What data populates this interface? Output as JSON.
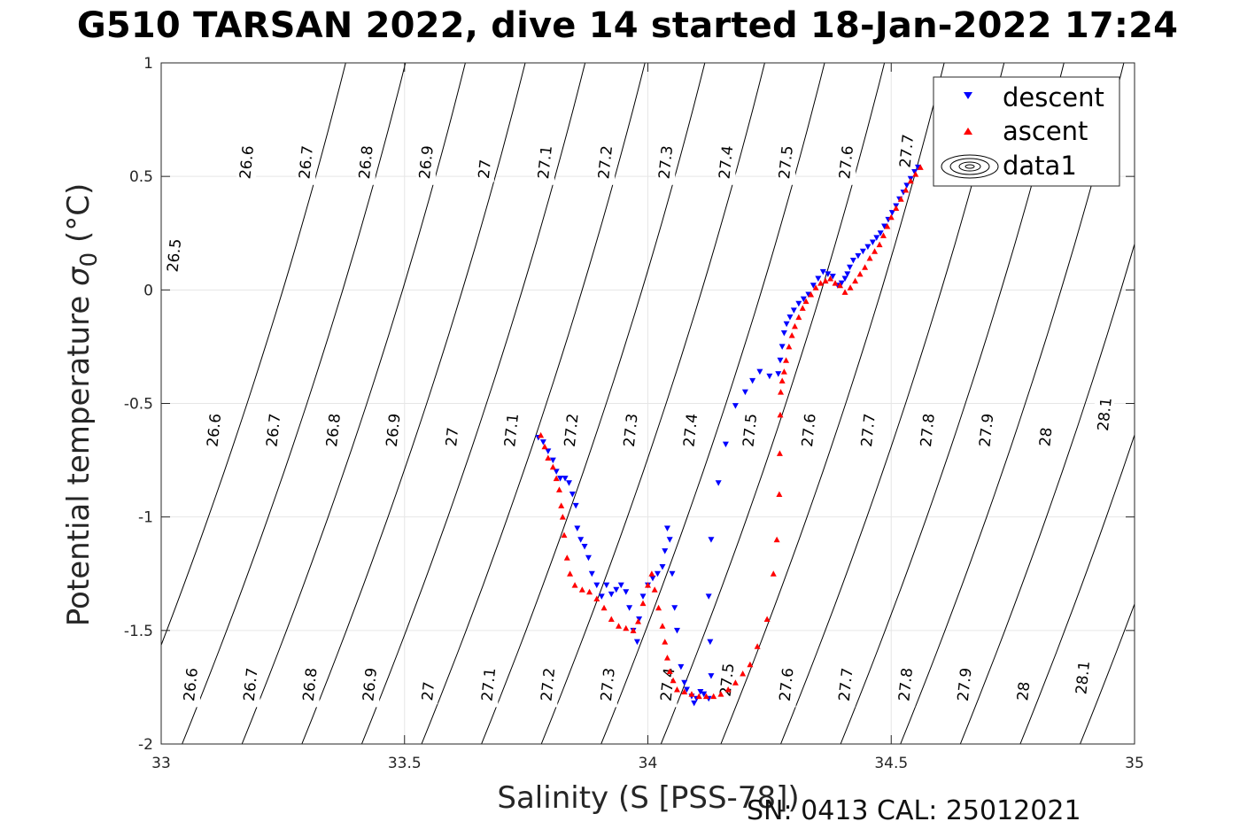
{
  "title": "G510 TARSAN 2022, dive 14 started 18-Jan-2022 17:24",
  "footer": "SN: 0413  CAL: 25012021",
  "colors": {
    "descent": "#0000ff",
    "ascent": "#ff0000",
    "grid": "#e6e6e6",
    "contour": "#000000",
    "axis": "#262626"
  },
  "chart_data": {
    "type": "scatter",
    "title": "G510 TARSAN 2022, dive 14 started 18-Jan-2022 17:24",
    "xlabel": "Salinity (S [PSS-78])",
    "ylabel": "Potential temperature σ 0 (°C)",
    "ylabel_main": "Potential temperature ",
    "ylabel_sigma": "σ",
    "ylabel_sub": "0",
    "ylabel_unit": " (°C)",
    "xlim": [
      33,
      35
    ],
    "ylim": [
      -2,
      1
    ],
    "xticks": [
      33,
      33.5,
      34,
      34.5,
      35
    ],
    "xtick_labels": [
      "33",
      "33.5",
      "34",
      "34.5",
      "35"
    ],
    "yticks": [
      -2,
      -1.5,
      -1,
      -0.5,
      0,
      0.5,
      1
    ],
    "ytick_labels": [
      "-2",
      "-1.5",
      "-1",
      "-0.5",
      "0",
      "0.5",
      "1"
    ],
    "grid": true,
    "legend": {
      "placement": "top-right",
      "entries": [
        "descent",
        "ascent",
        "data1"
      ]
    },
    "contours": {
      "name": "data1",
      "levels": [
        26.5,
        26.6,
        26.7,
        26.8,
        26.9,
        27,
        27.1,
        27.2,
        27.3,
        27.4,
        27.5,
        27.6,
        27.7,
        27.8,
        27.9,
        28,
        28.1
      ],
      "labels_top": [
        {
          "level": "26.5",
          "s": 33.026,
          "t": 0.15
        },
        {
          "level": "26.6",
          "s": 33.175,
          "t": 0.56
        },
        {
          "level": "26.7",
          "s": 33.297,
          "t": 0.56
        },
        {
          "level": "26.8",
          "s": 33.42,
          "t": 0.56
        },
        {
          "level": "26.9",
          "s": 33.544,
          "t": 0.56
        },
        {
          "level": "27",
          "s": 33.664,
          "t": 0.53
        },
        {
          "level": "27.1",
          "s": 33.788,
          "t": 0.56
        },
        {
          "level": "27.2",
          "s": 33.912,
          "t": 0.56
        },
        {
          "level": "27.3",
          "s": 34.036,
          "t": 0.56
        },
        {
          "level": "27.4",
          "s": 34.16,
          "t": 0.56
        },
        {
          "level": "27.5",
          "s": 34.283,
          "t": 0.56
        },
        {
          "level": "27.6",
          "s": 34.407,
          "t": 0.56
        },
        {
          "level": "27.7",
          "s": 34.531,
          "t": 0.61
        }
      ],
      "labels_mid": [
        {
          "level": "26.6",
          "s": 33.108,
          "t": -0.62
        },
        {
          "level": "26.7",
          "s": 33.23,
          "t": -0.62
        },
        {
          "level": "26.8",
          "s": 33.353,
          "t": -0.62
        },
        {
          "level": "26.9",
          "s": 33.476,
          "t": -0.62
        },
        {
          "level": "27",
          "s": 33.597,
          "t": -0.65
        },
        {
          "level": "27.1",
          "s": 33.719,
          "t": -0.62
        },
        {
          "level": "27.2",
          "s": 33.842,
          "t": -0.62
        },
        {
          "level": "27.3",
          "s": 33.964,
          "t": -0.62
        },
        {
          "level": "27.4",
          "s": 34.087,
          "t": -0.62
        },
        {
          "level": "27.5",
          "s": 34.209,
          "t": -0.62
        },
        {
          "level": "27.6",
          "s": 34.33,
          "t": -0.62
        },
        {
          "level": "27.7",
          "s": 34.452,
          "t": -0.62
        },
        {
          "level": "27.8",
          "s": 34.574,
          "t": -0.62
        },
        {
          "level": "27.9",
          "s": 34.695,
          "t": -0.62
        },
        {
          "level": "28",
          "s": 34.817,
          "t": -0.65
        },
        {
          "level": "28.1",
          "s": 34.938,
          "t": -0.55
        }
      ],
      "labels_bot": [
        {
          "level": "26.6",
          "s": 33.06,
          "t": -1.74
        },
        {
          "level": "26.7",
          "s": 33.183,
          "t": -1.74
        },
        {
          "level": "26.8",
          "s": 33.305,
          "t": -1.74
        },
        {
          "level": "26.9",
          "s": 33.428,
          "t": -1.74
        },
        {
          "level": "27",
          "s": 33.548,
          "t": -1.77
        },
        {
          "level": "27.1",
          "s": 33.672,
          "t": -1.74
        },
        {
          "level": "27.2",
          "s": 33.794,
          "t": -1.74
        },
        {
          "level": "27.3",
          "s": 33.917,
          "t": -1.74
        },
        {
          "level": "27.4",
          "s": 34.04,
          "t": -1.74
        },
        {
          "level": "27.5",
          "s": 34.162,
          "t": -1.72
        },
        {
          "level": "27.6",
          "s": 34.284,
          "t": -1.74
        },
        {
          "level": "27.7",
          "s": 34.406,
          "t": -1.74
        },
        {
          "level": "27.8",
          "s": 34.529,
          "t": -1.74
        },
        {
          "level": "27.9",
          "s": 34.65,
          "t": -1.74
        },
        {
          "level": "28",
          "s": 34.771,
          "t": -1.77
        },
        {
          "level": "28.1",
          "s": 34.893,
          "t": -1.71
        }
      ]
    },
    "series": [
      {
        "name": "descent",
        "marker": "triangle-down",
        "color": "#0000ff",
        "points": [
          [
            34.555,
            0.54
          ],
          [
            34.548,
            0.52
          ],
          [
            34.54,
            0.49
          ],
          [
            34.532,
            0.46
          ],
          [
            34.525,
            0.43
          ],
          [
            34.517,
            0.4
          ],
          [
            34.51,
            0.37
          ],
          [
            34.502,
            0.34
          ],
          [
            34.494,
            0.31
          ],
          [
            34.486,
            0.28
          ],
          [
            34.478,
            0.25
          ],
          [
            34.47,
            0.23
          ],
          [
            34.462,
            0.21
          ],
          [
            34.452,
            0.19
          ],
          [
            34.442,
            0.17
          ],
          [
            34.432,
            0.15
          ],
          [
            34.422,
            0.13
          ],
          [
            34.415,
            0.1
          ],
          [
            34.41,
            0.07
          ],
          [
            34.405,
            0.05
          ],
          [
            34.398,
            0.03
          ],
          [
            34.39,
            0.02
          ],
          [
            34.38,
            0.06
          ],
          [
            34.37,
            0.07
          ],
          [
            34.36,
            0.08
          ],
          [
            34.35,
            0.05
          ],
          [
            34.34,
            0.02
          ],
          [
            34.33,
            -0.02
          ],
          [
            34.32,
            -0.04
          ],
          [
            34.31,
            -0.06
          ],
          [
            34.3,
            -0.09
          ],
          [
            34.292,
            -0.12
          ],
          [
            34.285,
            -0.15
          ],
          [
            34.28,
            -0.19
          ],
          [
            34.276,
            -0.25
          ],
          [
            34.272,
            -0.31
          ],
          [
            34.268,
            -0.37
          ],
          [
            34.25,
            -0.38
          ],
          [
            34.23,
            -0.36
          ],
          [
            34.215,
            -0.4
          ],
          [
            34.2,
            -0.45
          ],
          [
            34.18,
            -0.51
          ],
          [
            34.16,
            -0.68
          ],
          [
            34.145,
            -0.85
          ],
          [
            34.13,
            -1.1
          ],
          [
            34.125,
            -1.35
          ],
          [
            34.128,
            -1.55
          ],
          [
            34.13,
            -1.7
          ],
          [
            34.125,
            -1.8
          ],
          [
            34.115,
            -1.78
          ],
          [
            34.108,
            -1.77
          ],
          [
            34.1,
            -1.8
          ],
          [
            34.095,
            -1.82
          ],
          [
            34.09,
            -1.79
          ],
          [
            34.08,
            -1.76
          ],
          [
            34.075,
            -1.73
          ],
          [
            34.068,
            -1.66
          ],
          [
            34.06,
            -1.5
          ],
          [
            34.055,
            -1.4
          ],
          [
            34.05,
            -1.25
          ],
          [
            34.045,
            -1.1
          ],
          [
            34.04,
            -1.05
          ],
          [
            34.035,
            -1.15
          ],
          [
            34.03,
            -1.22
          ],
          [
            34.02,
            -1.25
          ],
          [
            34.01,
            -1.27
          ],
          [
            34.0,
            -1.3
          ],
          [
            33.99,
            -1.35
          ],
          [
            33.982,
            -1.45
          ],
          [
            33.978,
            -1.55
          ],
          [
            33.97,
            -1.5
          ],
          [
            33.962,
            -1.4
          ],
          [
            33.955,
            -1.33
          ],
          [
            33.945,
            -1.3
          ],
          [
            33.935,
            -1.32
          ],
          [
            33.925,
            -1.34
          ],
          [
            33.915,
            -1.3
          ],
          [
            33.905,
            -1.35
          ],
          [
            33.895,
            -1.3
          ],
          [
            33.885,
            -1.25
          ],
          [
            33.878,
            -1.18
          ],
          [
            33.87,
            -1.13
          ],
          [
            33.862,
            -1.1
          ],
          [
            33.855,
            -1.05
          ],
          [
            33.852,
            -0.95
          ],
          [
            33.845,
            -0.9
          ],
          [
            33.838,
            -0.85
          ],
          [
            33.83,
            -0.83
          ],
          [
            33.82,
            -0.83
          ],
          [
            33.812,
            -0.8
          ],
          [
            33.805,
            -0.75
          ],
          [
            33.795,
            -0.71
          ],
          [
            33.785,
            -0.67
          ],
          [
            33.775,
            -0.65
          ]
        ]
      },
      {
        "name": "ascent",
        "marker": "triangle-up",
        "color": "#ff0000",
        "points": [
          [
            34.56,
            0.54
          ],
          [
            34.55,
            0.51
          ],
          [
            34.54,
            0.48
          ],
          [
            34.53,
            0.44
          ],
          [
            34.52,
            0.4
          ],
          [
            34.51,
            0.36
          ],
          [
            34.5,
            0.32
          ],
          [
            34.492,
            0.28
          ],
          [
            34.484,
            0.24
          ],
          [
            34.476,
            0.2
          ],
          [
            34.466,
            0.17
          ],
          [
            34.456,
            0.14
          ],
          [
            34.446,
            0.1
          ],
          [
            34.436,
            0.07
          ],
          [
            34.426,
            0.04
          ],
          [
            34.416,
            0.01
          ],
          [
            34.405,
            -0.01
          ],
          [
            34.395,
            0.02
          ],
          [
            34.385,
            0.03
          ],
          [
            34.375,
            0.05
          ],
          [
            34.365,
            0.04
          ],
          [
            34.355,
            0.03
          ],
          [
            34.345,
            0.01
          ],
          [
            34.335,
            -0.02
          ],
          [
            34.325,
            -0.05
          ],
          [
            34.318,
            -0.08
          ],
          [
            34.31,
            -0.12
          ],
          [
            34.302,
            -0.16
          ],
          [
            34.296,
            -0.2
          ],
          [
            34.29,
            -0.25
          ],
          [
            34.284,
            -0.31
          ],
          [
            34.28,
            -0.36
          ],
          [
            34.276,
            -0.4
          ],
          [
            34.273,
            -0.45
          ],
          [
            34.272,
            -0.55
          ],
          [
            34.271,
            -0.72
          ],
          [
            34.27,
            -0.9
          ],
          [
            34.265,
            -1.1
          ],
          [
            34.258,
            -1.25
          ],
          [
            34.245,
            -1.45
          ],
          [
            34.225,
            -1.57
          ],
          [
            34.21,
            -1.65
          ],
          [
            34.195,
            -1.69
          ],
          [
            34.18,
            -1.73
          ],
          [
            34.165,
            -1.76
          ],
          [
            34.15,
            -1.78
          ],
          [
            34.135,
            -1.79
          ],
          [
            34.12,
            -1.79
          ],
          [
            34.105,
            -1.79
          ],
          [
            34.09,
            -1.78
          ],
          [
            34.075,
            -1.77
          ],
          [
            34.06,
            -1.76
          ],
          [
            34.052,
            -1.72
          ],
          [
            34.045,
            -1.68
          ],
          [
            34.04,
            -1.62
          ],
          [
            34.035,
            -1.55
          ],
          [
            34.03,
            -1.48
          ],
          [
            34.022,
            -1.4
          ],
          [
            34.014,
            -1.32
          ],
          [
            34.008,
            -1.25
          ],
          [
            34.0,
            -1.3
          ],
          [
            33.99,
            -1.38
          ],
          [
            33.98,
            -1.46
          ],
          [
            33.97,
            -1.5
          ],
          [
            33.955,
            -1.49
          ],
          [
            33.94,
            -1.48
          ],
          [
            33.925,
            -1.45
          ],
          [
            33.91,
            -1.4
          ],
          [
            33.895,
            -1.36
          ],
          [
            33.88,
            -1.33
          ],
          [
            33.865,
            -1.32
          ],
          [
            33.85,
            -1.3
          ],
          [
            33.84,
            -1.25
          ],
          [
            33.834,
            -1.18
          ],
          [
            33.828,
            -1.08
          ],
          [
            33.825,
            -1.0
          ],
          [
            33.822,
            -0.95
          ],
          [
            33.818,
            -0.88
          ],
          [
            33.812,
            -0.83
          ],
          [
            33.805,
            -0.78
          ],
          [
            33.795,
            -0.74
          ],
          [
            33.788,
            -0.69
          ],
          [
            33.78,
            -0.64
          ]
        ]
      }
    ]
  }
}
